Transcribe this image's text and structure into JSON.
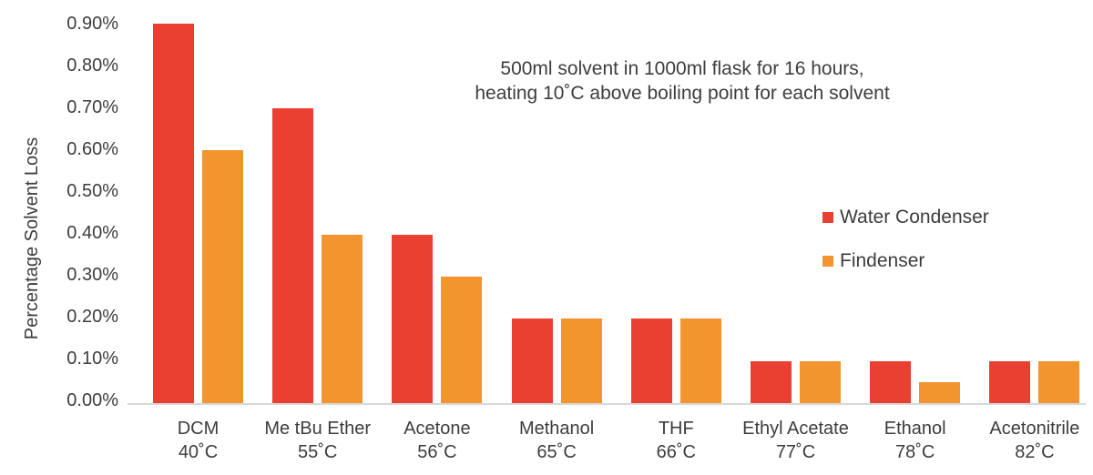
{
  "chart_data": {
    "type": "bar",
    "title": "",
    "ylabel": "Percentage Solvent Loss",
    "xlabel": "",
    "annotation_line1": "500ml solvent in 1000ml flask for 16 hours,",
    "annotation_line2": "heating 10˚C above boiling point for each solvent",
    "categories": [
      "DCM",
      "Me tBu Ether",
      "Acetone",
      "Methanol",
      "THF",
      "Ethyl Acetate",
      "Ethanol",
      "Acetonitrile"
    ],
    "category_sublabels": [
      "40˚C",
      "55˚C",
      "56˚C",
      "65˚C",
      "66˚C",
      "77˚C",
      "78˚C",
      "82˚C"
    ],
    "series": [
      {
        "name": "Water Condenser",
        "color": "#e94031",
        "values": [
          0.9,
          0.7,
          0.4,
          0.2,
          0.2,
          0.1,
          0.1,
          0.1
        ]
      },
      {
        "name": "Findenser",
        "color": "#f2952f",
        "values": [
          0.6,
          0.4,
          0.3,
          0.2,
          0.2,
          0.1,
          0.05,
          0.1
        ]
      }
    ],
    "values_unit": "%",
    "yticks": [
      "0.00%",
      "0.10%",
      "0.20%",
      "0.30%",
      "0.40%",
      "0.50%",
      "0.60%",
      "0.70%",
      "0.80%",
      "0.90%"
    ],
    "ylim": [
      0,
      0.9
    ],
    "grid": false,
    "legend_position": "right-middle",
    "axis_line_color": "#d7d7d7",
    "text_color": "#3d3d3d",
    "background_color": "#ffffff"
  }
}
